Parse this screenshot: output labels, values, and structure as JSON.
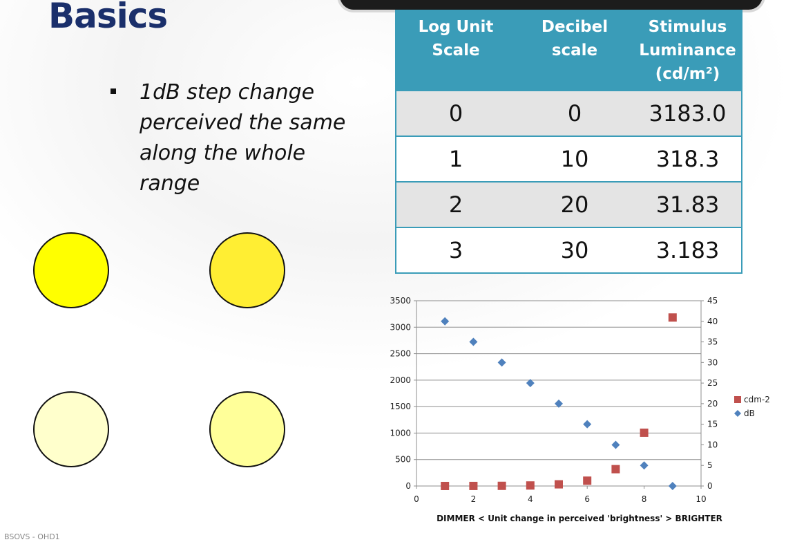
{
  "title": "Basics",
  "bullet": "1dB step change perceived the same along the whole range",
  "circles": {
    "colors": [
      "#ffff00",
      "#ffee33",
      "#ffffcc",
      "#ffff99"
    ]
  },
  "table": {
    "headers": [
      "Log Unit Scale",
      "Decibel scale",
      "Stimulus Luminance (cd/m²)"
    ],
    "rows": [
      [
        "0",
        "0",
        "3183.0"
      ],
      [
        "1",
        "10",
        "318.3"
      ],
      [
        "2",
        "20",
        "31.83"
      ],
      [
        "3",
        "30",
        "3.183"
      ]
    ]
  },
  "chart_data": {
    "type": "scatter",
    "xlabel": "DIMMER <    Unit change in perceived 'brightness'    > BRIGHTER",
    "xlim": [
      0,
      10
    ],
    "xticks": [
      "0",
      "2",
      "4",
      "6",
      "8",
      "10"
    ],
    "ylim_left": [
      0,
      3500
    ],
    "yticks_left": [
      "0",
      "500",
      "1000",
      "1500",
      "2000",
      "2500",
      "3000",
      "3500"
    ],
    "ylim_right": [
      0,
      45
    ],
    "yticks_right": [
      "0",
      "5",
      "10",
      "15",
      "20",
      "25",
      "30",
      "35",
      "40",
      "45"
    ],
    "grid": true,
    "legend_position": "right",
    "series": [
      {
        "name": "cdm-2",
        "axis": "left",
        "marker": "square",
        "color": "#c0504d",
        "x": [
          1,
          2,
          3,
          4,
          5,
          6,
          7,
          8,
          9
        ],
        "y": [
          0.32,
          1.0,
          3.18,
          10.1,
          31.8,
          100.7,
          318.3,
          1006.6,
          3183.0
        ]
      },
      {
        "name": "dB",
        "axis": "right",
        "marker": "diamond",
        "color": "#4f81bd",
        "x": [
          1,
          2,
          3,
          4,
          5,
          6,
          7,
          8,
          9
        ],
        "y": [
          40,
          35,
          30,
          25,
          20,
          15,
          10,
          5,
          0
        ]
      }
    ]
  },
  "footer": "BSOVS - OHD1"
}
